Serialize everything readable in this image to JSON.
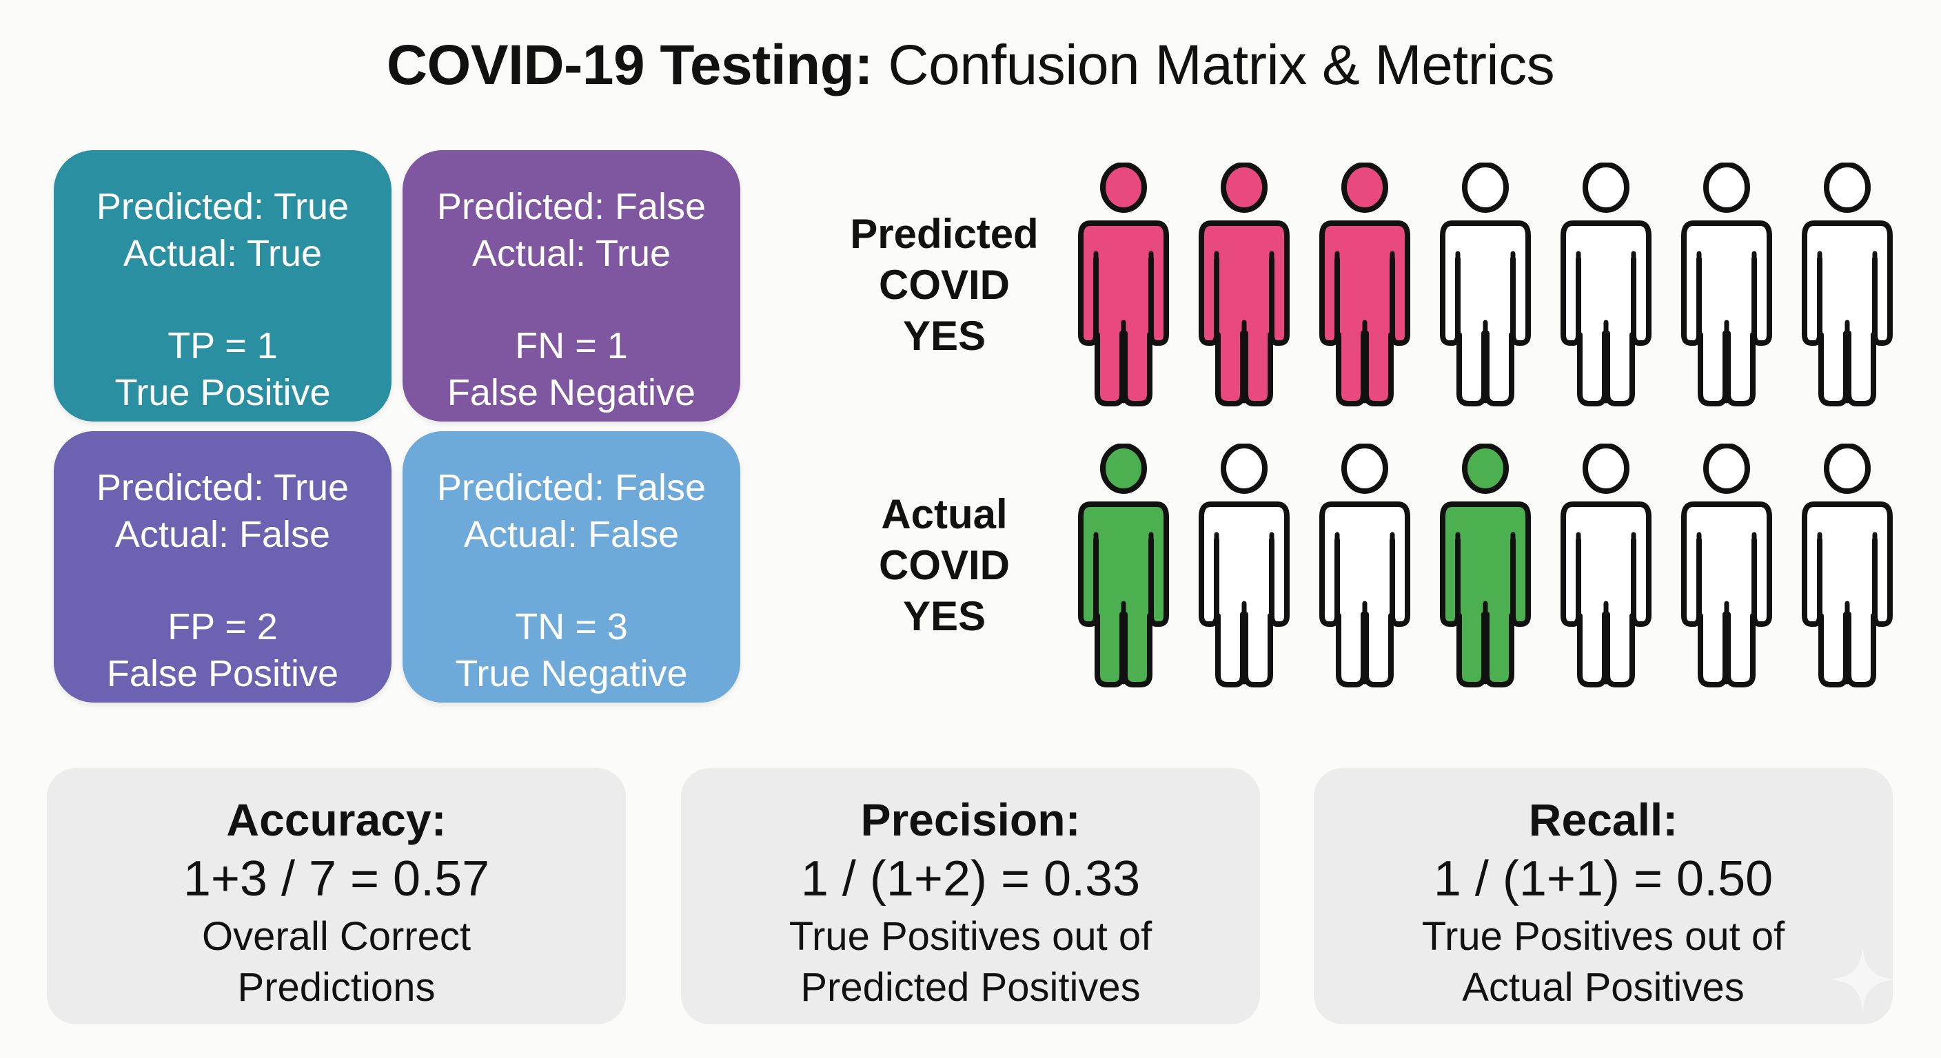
{
  "title": {
    "bold": "COVID-19 Testing:",
    "regular": "Confusion Matrix & Metrics"
  },
  "matrix": {
    "cells": [
      {
        "id": "tp",
        "predicted": "Predicted: True",
        "actual": "Actual: True",
        "count_label": "TP = 1",
        "name": "True Positive",
        "color": "#2b8fa2"
      },
      {
        "id": "fn",
        "predicted": "Predicted: False",
        "actual": "Actual: True",
        "count_label": "FN = 1",
        "name": "False Negative",
        "color": "#7f57a1"
      },
      {
        "id": "fp",
        "predicted": "Predicted: True",
        "actual": "Actual: False",
        "count_label": "FP = 2",
        "name": "False Positive",
        "color": "#6b63b2"
      },
      {
        "id": "tn",
        "predicted": "Predicted: False",
        "actual": "Actual: False",
        "count_label": "TN = 3",
        "name": "True Negative",
        "color": "#6eaad9"
      }
    ]
  },
  "people": {
    "predicted_row": {
      "label": [
        "Predicted",
        "COVID",
        "YES"
      ],
      "fill_color": "#e84a80",
      "figures": [
        true,
        true,
        true,
        false,
        false,
        false,
        false
      ]
    },
    "actual_row": {
      "label": [
        "Actual",
        "COVID",
        "YES"
      ],
      "fill_color": "#4caf50",
      "figures": [
        true,
        false,
        false,
        true,
        false,
        false,
        false
      ]
    }
  },
  "metrics": [
    {
      "id": "accuracy",
      "title": "Accuracy:",
      "formula": "1+3 / 7 = 0.57",
      "desc": [
        "Overall Correct",
        "Predictions"
      ]
    },
    {
      "id": "precision",
      "title": "Precision:",
      "formula": "1 / (1+2) = 0.33",
      "desc": [
        "True Positives out of",
        "Predicted Positives"
      ]
    },
    {
      "id": "recall",
      "title": "Recall:",
      "formula": "1 / (1+1) = 0.50",
      "desc": [
        "True Positives out of",
        "Actual Positives"
      ]
    }
  ],
  "colors": {
    "background": "#fbfbfa",
    "metric_card": "#ececec",
    "text": "#111111",
    "figure_outline": "#111111",
    "figure_empty": "#ffffff"
  }
}
